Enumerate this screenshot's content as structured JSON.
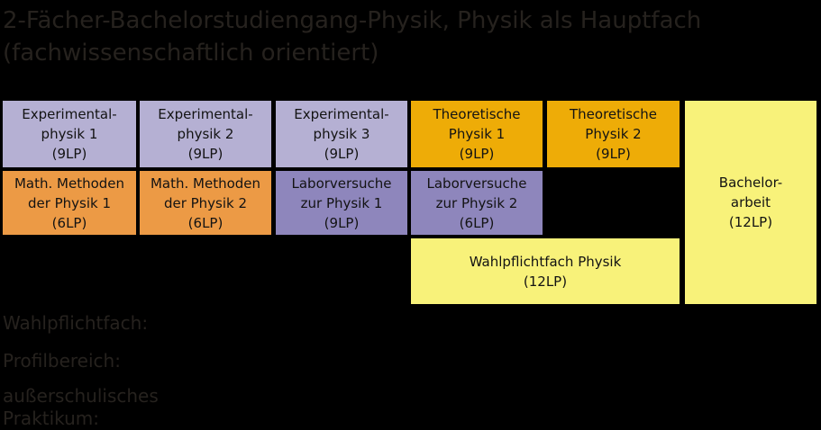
{
  "title": "2-Fächer-Bachelorstudiengang-Physik, Physik als Hauptfach\n(fachwissenschaftlich orientiert)",
  "colors": {
    "background": "#000000",
    "muted_text": "#26221e",
    "box_text": "#131313",
    "lavender": "#b5b0d3",
    "orange": "#ec9a45",
    "purple": "#8e86bc",
    "amber": "#eeac07",
    "light_yellow": "#f8f27a"
  },
  "boxes": [
    {
      "id": "experimentalphysik-1",
      "label": "Experimental-\nphysik 1\n(9LP)",
      "color": "lavender",
      "credits": "9LP"
    },
    {
      "id": "experimentalphysik-2",
      "label": "Experimental-\nphysik 2\n(9LP)",
      "color": "lavender",
      "credits": "9LP"
    },
    {
      "id": "experimentalphysik-3",
      "label": "Experimental-\nphysik 3\n(9LP)",
      "color": "lavender",
      "credits": "9LP"
    },
    {
      "id": "theoretische-physik-1",
      "label": "Theoretische\nPhysik 1\n(9LP)",
      "color": "amber",
      "credits": "9LP"
    },
    {
      "id": "theoretische-physik-2",
      "label": "Theoretische\nPhysik 2\n(9LP)",
      "color": "amber",
      "credits": "9LP"
    },
    {
      "id": "math-methoden-1",
      "label": "Math. Methoden\nder Physik 1\n(6LP)",
      "color": "orange",
      "credits": "6LP"
    },
    {
      "id": "math-methoden-2",
      "label": "Math. Methoden\nder Physik 2\n(6LP)",
      "color": "orange",
      "credits": "6LP"
    },
    {
      "id": "laborversuche-1",
      "label": "Laborversuche\nzur Physik 1\n(9LP)",
      "color": "purple",
      "credits": "9LP"
    },
    {
      "id": "laborversuche-2",
      "label": "Laborversuche\nzur Physik 2\n(6LP)",
      "color": "purple",
      "credits": "6LP"
    },
    {
      "id": "wahlpflichtfach-physik",
      "label": "Wahlpflichtfach Physik\n(12LP)",
      "color": "light_yellow",
      "credits": "12LP"
    },
    {
      "id": "bachelorarbeit",
      "label": "Bachelor-\narbeit\n(12LP)",
      "color": "light_yellow",
      "credits": "12LP"
    }
  ],
  "footer": {
    "wahlpflichtfach": "Wahlpflichtfach:",
    "profilbereich": "Profilbereich:",
    "praktikum": "außerschulisches\nPraktikum:"
  }
}
